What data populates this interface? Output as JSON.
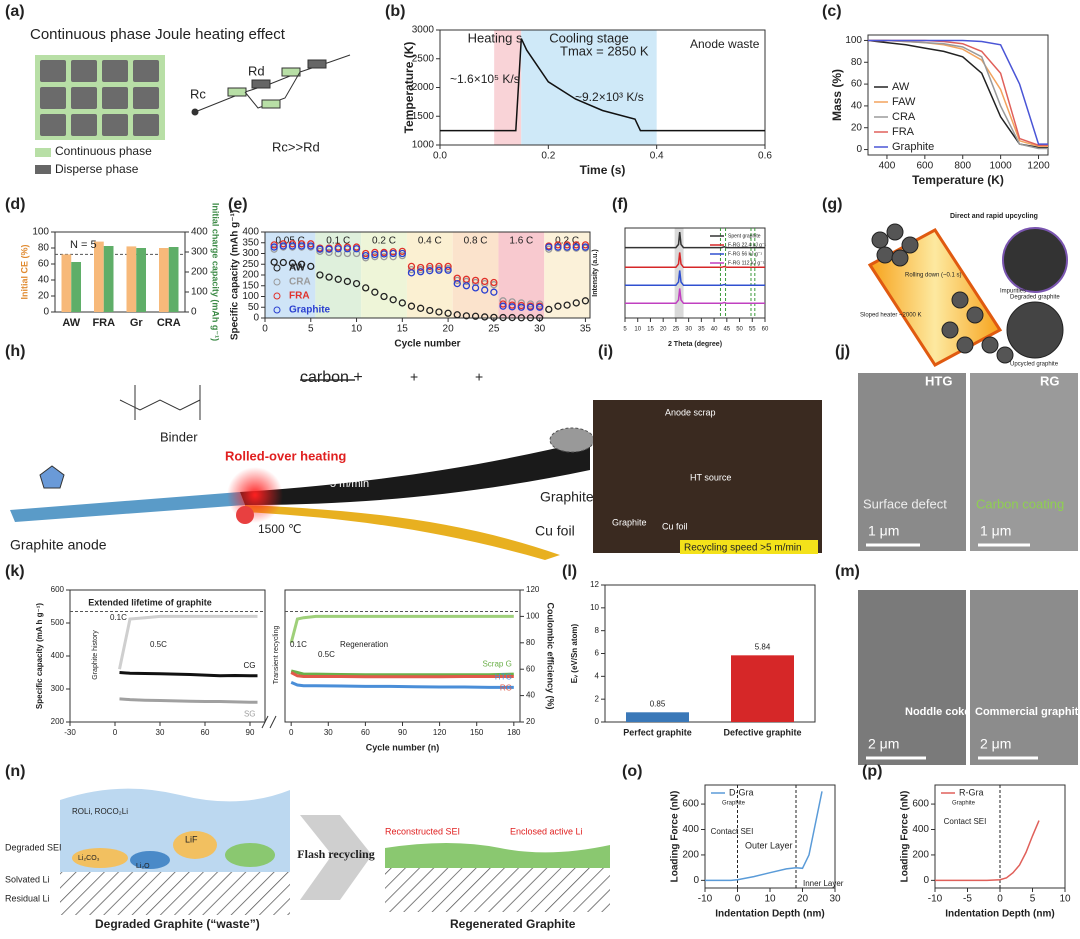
{
  "figure": {
    "a": {
      "label": "(a)",
      "texts": [
        "Continuous phase Joule heating effect",
        "Rc",
        "Rd",
        "Rc>>Rd",
        "Continuous phase",
        "Disperse phase"
      ]
    },
    "g": {
      "label": "(g)",
      "texts": [
        "Direct and rapid upcycling",
        "Rolling down (~0.1 s)",
        "Impurities",
        "Degraded graphite",
        "Sloped heater ~2000 K",
        "Upcycled graphite"
      ]
    },
    "h": {
      "label": "(h)",
      "texts": [
        "Binder",
        "carbon +",
        "+",
        "+",
        "Rolled-over heating",
        "5 m/min",
        "Graphite anode",
        "1500 ℃",
        "Graphite",
        "Cu foil"
      ]
    },
    "i": {
      "label": "(i)",
      "texts": [
        "Anode scrap",
        "HT source",
        "Graphite",
        "Cu foil",
        "Recycling speed >5 m/min"
      ]
    },
    "j": {
      "label": "(j)",
      "texts": [
        "HTG",
        "RG",
        "Surface defect",
        "Carbon coating",
        "1 μm",
        "1 μm"
      ]
    },
    "m": {
      "label": "(m)",
      "texts": [
        "Noddle coke",
        "Commercial graphite",
        "2 μm",
        "2 μm"
      ]
    },
    "n": {
      "label": "(n)",
      "texts": [
        "Degraded SEI",
        "Solvated Li",
        "Residual Li",
        "ROLi, ROCO₂Li",
        "LiF",
        "Li₂CO₃",
        "Li₂O",
        "Flash recycling",
        "Reconstructed SEI",
        "Enclosed active Li",
        "Degraded Graphite (“waste”)",
        "Regenerated Graphite"
      ]
    }
  },
  "chart_data": [
    {
      "label": "(b)",
      "type": "line",
      "xlabel": "Time (s)",
      "ylabel": "Temperature (K)",
      "xlim": [
        0,
        0.6
      ],
      "xticks": [
        {
          "value": 0,
          "label": "0.0"
        },
        0.2,
        0.4,
        0.6
      ],
      "ylim": [
        1000,
        3000
      ],
      "yticks": [
        1000,
        1500,
        2000,
        2500,
        3000
      ],
      "spans": [
        {
          "label": "Heating stage",
          "range": [
            0.1,
            0.15
          ],
          "color": "#f9d3d7"
        },
        {
          "label": "Cooling stage",
          "range": [
            0.15,
            0.4
          ],
          "color": "#cfe9f8"
        }
      ],
      "annotations": [
        "Anode waste",
        "Tmax = 2850 K",
        "~1.6×10⁵ K/s",
        "~9.2×10³ K/s"
      ],
      "series": [
        {
          "color": "#111111",
          "x": [
            0,
            0.1,
            0.14,
            0.15,
            0.16,
            0.2,
            0.25,
            0.3,
            0.36,
            0.37,
            0.6
          ],
          "values": [
            1250,
            1250,
            1250,
            2850,
            2650,
            2100,
            1800,
            1600,
            1450,
            1250,
            1250
          ]
        }
      ]
    },
    {
      "label": "(c)",
      "type": "line",
      "xlabel": "Temperature (K)",
      "ylabel": "Mass (%)",
      "xlim": [
        300,
        1250
      ],
      "xticks": [
        400,
        600,
        800,
        1000,
        1200
      ],
      "ylim": [
        -5,
        105
      ],
      "yticks": [
        0,
        20,
        40,
        60,
        80,
        100
      ],
      "legend": "lower left",
      "x": [
        300,
        400,
        500,
        600,
        700,
        800,
        900,
        1000,
        1100,
        1200,
        1250
      ],
      "series": [
        {
          "name": "AW",
          "color": "#222222",
          "values": [
            100,
            98,
            96,
            93,
            90,
            85,
            70,
            30,
            5,
            2,
            2
          ]
        },
        {
          "name": "FAW",
          "color": "#f2a35e",
          "values": [
            100,
            100,
            99,
            98,
            96,
            92,
            82,
            55,
            8,
            3,
            3
          ]
        },
        {
          "name": "CRA",
          "color": "#9a9a9a",
          "values": [
            100,
            100,
            99,
            98,
            97,
            94,
            85,
            40,
            5,
            1,
            1
          ]
        },
        {
          "name": "FRA",
          "color": "#e0605a",
          "values": [
            100,
            100,
            100,
            100,
            99,
            97,
            90,
            70,
            10,
            4,
            4
          ]
        },
        {
          "name": "Graphite",
          "color": "#4a55d6",
          "values": [
            100,
            100,
            100,
            100,
            100,
            100,
            99,
            96,
            60,
            5,
            5
          ]
        }
      ]
    },
    {
      "label": "(d)",
      "type": "bar",
      "ylabel": "Initial CE (%)",
      "y2label": "Initial charge capacity (mAh g⁻¹)",
      "categories": [
        "AW",
        "FRA",
        "Gr",
        "CRA"
      ],
      "ylim": [
        0,
        100
      ],
      "yticks": [
        0,
        20,
        40,
        60,
        80,
        100
      ],
      "y2lim": [
        0,
        400
      ],
      "y2ticks": [
        0,
        100,
        200,
        300,
        400
      ],
      "hline": 72,
      "annotations": [
        "N = 5"
      ],
      "series": [
        {
          "color": "#f7b97a",
          "values": [
            72,
            88,
            82,
            80
          ]
        },
        {
          "color": "#5fae68",
          "axis": "y2",
          "values": [
            250,
            330,
            320,
            325
          ]
        }
      ]
    },
    {
      "label": "(e)",
      "type": "scatter",
      "xlabel": "Cycle number",
      "ylabel": "Specific capacity (mAh g⁻¹)",
      "xlim": [
        0,
        35.5
      ],
      "xticks": [
        0,
        5,
        10,
        15,
        20,
        25,
        30,
        35
      ],
      "ylim": [
        0,
        400
      ],
      "yticks": [
        0,
        50,
        100,
        150,
        200,
        250,
        300,
        350,
        400
      ],
      "legend": "lower left",
      "spans": [
        {
          "label": "0.05 C",
          "range": [
            0,
            5.5
          ],
          "color": "#cfe4f7"
        },
        {
          "label": "0.1 C",
          "range": [
            5.5,
            10.5
          ],
          "color": "#dff0dc"
        },
        {
          "label": "0.2 C",
          "range": [
            10.5,
            15.5
          ],
          "color": "#eef5d8"
        },
        {
          "label": "0.4 C",
          "range": [
            15.5,
            20.5
          ],
          "color": "#fbf0d2"
        },
        {
          "label": "0.8 C",
          "range": [
            20.5,
            25.5
          ],
          "color": "#fbe3cc"
        },
        {
          "label": "1.6 C",
          "range": [
            25.5,
            30.5
          ],
          "color": "#f8c9cf"
        },
        {
          "label": "0.2 C",
          "range": [
            30.5,
            35.5
          ],
          "color": "#fbf1d9"
        }
      ],
      "x": [
        1,
        2,
        3,
        4,
        5,
        6,
        7,
        8,
        9,
        10,
        11,
        12,
        13,
        14,
        15,
        16,
        17,
        18,
        19,
        20,
        21,
        22,
        23,
        24,
        25,
        26,
        27,
        28,
        29,
        30,
        31,
        32,
        33,
        34,
        35
      ],
      "series": [
        {
          "name": "AW",
          "color": "#222222",
          "values": [
            260,
            258,
            255,
            250,
            240,
            200,
            190,
            180,
            170,
            160,
            140,
            120,
            100,
            85,
            70,
            55,
            45,
            35,
            28,
            22,
            15,
            10,
            8,
            5,
            3,
            2,
            2,
            1,
            1,
            1,
            40,
            55,
            60,
            70,
            80
          ]
        },
        {
          "name": "CRA",
          "color": "#9a9a9a",
          "values": [
            320,
            330,
            330,
            330,
            330,
            310,
            305,
            300,
            300,
            300,
            280,
            285,
            285,
            285,
            290,
            225,
            225,
            230,
            230,
            230,
            175,
            170,
            165,
            160,
            155,
            80,
            75,
            70,
            65,
            65,
            320,
            325,
            325,
            325,
            325
          ]
        },
        {
          "name": "FRA",
          "color": "#e0302a",
          "values": [
            340,
            345,
            345,
            345,
            345,
            325,
            325,
            330,
            330,
            330,
            300,
            305,
            305,
            308,
            310,
            240,
            235,
            240,
            240,
            240,
            185,
            180,
            175,
            170,
            165,
            65,
            60,
            58,
            55,
            55,
            335,
            340,
            340,
            340,
            340
          ]
        },
        {
          "name": "Graphite",
          "color": "#2a3fd0",
          "values": [
            330,
            335,
            335,
            335,
            335,
            320,
            320,
            322,
            322,
            322,
            290,
            295,
            298,
            300,
            300,
            210,
            215,
            220,
            222,
            222,
            160,
            150,
            140,
            130,
            120,
            55,
            52,
            50,
            50,
            50,
            330,
            330,
            330,
            330,
            330
          ]
        }
      ]
    },
    {
      "label": "(f)",
      "type": "line",
      "xlabel": "2 Theta (degree)",
      "ylabel": "Intensity (a.u.)",
      "xlim": [
        5,
        60
      ],
      "xticks": [
        5,
        10,
        15,
        20,
        25,
        30,
        35,
        40,
        45,
        50,
        55,
        60
      ],
      "ylim": [
        0,
        1.1
      ],
      "legend": "upper right",
      "vlines": [
        42.5,
        44.5,
        54.5,
        56
      ],
      "spans": [
        {
          "range": [
            24.5,
            28
          ],
          "color": "#d9d9d9"
        }
      ],
      "x": [
        5,
        20,
        25,
        26,
        26.5,
        27,
        28,
        43,
        44,
        45,
        55,
        60
      ],
      "series": [
        {
          "name": "Spent graphite",
          "color": "#333333",
          "values": [
            0.86,
            0.86,
            0.86,
            0.9,
            1.05,
            0.9,
            0.86,
            0.86,
            0.87,
            0.86,
            0.86,
            0.86
          ]
        },
        {
          "name": "F-RG 22.4 kJ g⁻¹",
          "color": "#d62728",
          "values": [
            0.62,
            0.62,
            0.62,
            0.66,
            0.8,
            0.66,
            0.62,
            0.62,
            0.63,
            0.62,
            0.62,
            0.62
          ]
        },
        {
          "name": "F-RG 56 kJ g⁻¹",
          "color": "#3050d0",
          "values": [
            0.4,
            0.4,
            0.4,
            0.44,
            0.58,
            0.44,
            0.4,
            0.4,
            0.41,
            0.4,
            0.4,
            0.4
          ]
        },
        {
          "name": "F-RG 112 kJ g⁻¹",
          "color": "#c040c0",
          "values": [
            0.18,
            0.18,
            0.18,
            0.22,
            0.36,
            0.22,
            0.18,
            0.18,
            0.19,
            0.18,
            0.18,
            0.18
          ]
        }
      ]
    },
    {
      "label": "(k)",
      "type": "line",
      "ylabel": "Specific capacity (mA h g⁻¹)",
      "xlim": [
        -30,
        100
      ],
      "xticks": [
        -30,
        0,
        30,
        60,
        90
      ],
      "ylim": [
        200,
        600
      ],
      "yticks": [
        200,
        300,
        400,
        500,
        600
      ],
      "y2lim": [
        20,
        120
      ],
      "hline": 535,
      "legend": "inline",
      "annotations": [
        "Graphite history",
        "0.1C",
        "0.5C"
      ],
      "x": [
        3,
        10,
        20,
        30,
        40,
        50,
        60,
        70,
        80,
        90,
        95
      ],
      "series": [
        {
          "name": "CG",
          "color": "#111111",
          "values": [
            350,
            348,
            347,
            346,
            345,
            344,
            342,
            340,
            341,
            340,
            340
          ]
        },
        {
          "name": "SG",
          "color": "#a0a0a0",
          "values": [
            270,
            268,
            266,
            265,
            264,
            263,
            262,
            262,
            261,
            260,
            260
          ]
        },
        {
          "color": "#cfcfcf",
          "axis": "y2",
          "values": [
            60,
            98,
            99,
            100,
            100,
            100,
            100,
            100,
            100,
            100,
            100
          ]
        }
      ]
    },
    {
      "type": "line",
      "xlabel": "Cycle number (n)",
      "y2label": "Coulombic efficiency (%)",
      "xlim": [
        -5,
        185
      ],
      "xticks": [
        0,
        30,
        60,
        90,
        120,
        150,
        180
      ],
      "ylim": [
        200,
        600
      ],
      "y2lim": [
        20,
        120
      ],
      "y2ticks": [
        20,
        40,
        60,
        80,
        100,
        120
      ],
      "hline": 535,
      "legend": "inline",
      "annotations": [
        "Extended lifetime of graphite",
        "Transient recycling",
        "0.1C",
        "0.5C",
        "Regeneration"
      ],
      "x": [
        0,
        5,
        10,
        20,
        40,
        60,
        80,
        100,
        120,
        140,
        160,
        180
      ],
      "series": [
        {
          "name": "Scrap G",
          "color": "#6cb04a",
          "values": [
            355,
            350,
            345,
            345,
            344,
            343,
            343,
            343,
            343,
            343,
            343,
            345
          ]
        },
        {
          "name": "RG",
          "color": "#e05a4a",
          "values": [
            350,
            340,
            338,
            338,
            338,
            337,
            337,
            337,
            337,
            338,
            338,
            338
          ]
        },
        {
          "name": "HTG",
          "color": "#4a8ed8",
          "values": [
            320,
            312,
            310,
            310,
            309,
            308,
            308,
            307,
            306,
            306,
            305,
            305
          ]
        },
        {
          "color": "#9fd07a",
          "axis": "y2",
          "values": [
            80,
            98,
            99,
            100,
            100,
            100,
            100,
            100,
            100,
            100,
            100,
            100
          ]
        }
      ]
    },
    {
      "label": "(l)",
      "type": "bar",
      "ylabel": "Eᵥ (eV/Sn atom)",
      "categories": [
        "Perfect graphite",
        "Defective graphite"
      ],
      "ylim": [
        0,
        12
      ],
      "yticks": [
        0,
        2,
        4,
        6,
        8,
        10,
        12
      ],
      "colors": [
        "#3a78b8",
        "#d62728"
      ],
      "series": [
        {
          "values": [
            0.85,
            5.84
          ]
        }
      ]
    },
    {
      "label": "(o)",
      "type": "line",
      "xlabel": "Indentation Depth (nm)",
      "ylabel": "Loading Force (nN)",
      "xlim": [
        -10,
        30
      ],
      "xticks": [
        -10,
        0,
        10,
        20,
        30
      ],
      "ylim": [
        -60,
        750
      ],
      "yticks": [
        0,
        200,
        400,
        600
      ],
      "legend": "upper left",
      "vlines": [
        0,
        18
      ],
      "annotations": [
        "Contact SEI",
        "Outer Layer",
        "Inner Layer",
        "Graphite"
      ],
      "series": [
        {
          "name": "D-Gra",
          "color": "#5a9bd8",
          "x": [
            -10,
            -2,
            0,
            5,
            10,
            15,
            18,
            20,
            22,
            24,
            26
          ],
          "values": [
            0,
            0,
            5,
            30,
            60,
            90,
            100,
            95,
            200,
            450,
            700
          ]
        }
      ]
    },
    {
      "label": "(p)",
      "type": "line",
      "xlabel": "Indentation Depth (nm)",
      "ylabel": "Loading Force (nN)",
      "xlim": [
        -10,
        10
      ],
      "xticks": [
        -10,
        -5,
        0,
        5,
        10
      ],
      "ylim": [
        -60,
        750
      ],
      "yticks": [
        0,
        200,
        400,
        600
      ],
      "legend": "upper left",
      "vlines": [
        0
      ],
      "annotations": [
        "Contact SEI",
        "Graphite"
      ],
      "series": [
        {
          "name": "R-Gra",
          "color": "#e0605a",
          "x": [
            -10,
            -2,
            0,
            1,
            2,
            3,
            4,
            5,
            6
          ],
          "values": [
            0,
            0,
            5,
            20,
            60,
            120,
            220,
            350,
            470
          ]
        }
      ]
    }
  ]
}
